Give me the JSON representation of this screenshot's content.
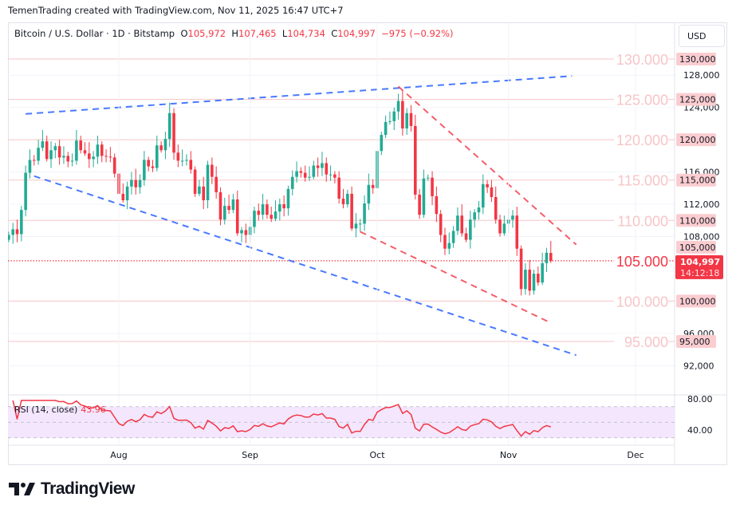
{
  "credit": "TemenTrading created with TradingView.com, Nov 11, 2025 16:47 UTC+7",
  "legend": {
    "symbol": "Bitcoin / U.S. Dollar · 1D · Bitstamp",
    "o_label": "O",
    "o": "105,972",
    "h_label": "H",
    "h": "107,465",
    "l_label": "L",
    "l": "104,734",
    "c_label": "C",
    "c": "104,997",
    "change": "−975 (−0.92%)"
  },
  "currency_button": "USD",
  "last_price": {
    "value": "104,997",
    "countdown": "14:12:18"
  },
  "colors": {
    "up": "#22ab94",
    "down": "#f23645",
    "level": "#f7c5c7",
    "trend_blue": "#2962ff",
    "trend_red": "#f23645",
    "rsi": "#f23645",
    "rsi_band": "#f3e6fd"
  },
  "chart_data": [
    {
      "type": "candlestick",
      "title": "Bitcoin / U.S. Dollar · 1D · Bitstamp",
      "start_date": "2025-07-06",
      "closes_thousands": [
        108.2,
        108.9,
        108.3,
        111.3,
        115.9,
        117.5,
        117.4,
        119.0,
        119.8,
        117.6,
        118.7,
        119.2,
        117.8,
        118.0,
        117.3,
        117.4,
        119.9,
        118.7,
        118.3,
        117.6,
        117.9,
        119.4,
        118.0,
        117.9,
        117.8,
        115.8,
        113.3,
        112.5,
        114.2,
        115.0,
        114.1,
        115.0,
        117.5,
        116.7,
        116.5,
        119.3,
        118.7,
        120.1,
        123.3,
        118.4,
        117.4,
        117.4,
        117.5,
        116.3,
        113.3,
        114.2,
        112.5,
        116.9,
        115.4,
        113.5,
        110.1,
        111.8,
        111.3,
        112.6,
        108.4,
        108.8,
        108.2,
        109.2,
        111.2,
        110.7,
        112.0,
        110.7,
        110.2,
        111.1,
        112.0,
        111.5,
        113.9,
        115.4,
        116.1,
        115.9,
        115.3,
        115.4,
        116.8,
        116.5,
        117.1,
        115.7,
        115.7,
        115.3,
        112.7,
        112.0,
        113.3,
        109.0,
        109.6,
        109.6,
        112.1,
        114.4,
        114.0,
        118.6,
        120.6,
        122.2,
        122.3,
        123.5,
        124.8,
        121.4,
        123.3,
        121.7,
        113.2,
        110.7,
        115.2,
        115.3,
        113.0,
        110.8,
        108.2,
        106.5,
        107.2,
        108.7,
        110.6,
        108.4,
        107.6,
        110.1,
        111.0,
        111.6,
        114.5,
        114.1,
        112.9,
        110.1,
        108.4,
        109.6,
        110.1,
        110.6,
        106.5,
        101.5,
        103.9,
        101.3,
        103.4,
        102.3,
        104.7,
        106.0,
        105.0
      ],
      "last_bar": {
        "open": 105972,
        "high": 107465,
        "low": 104734,
        "close": 104997
      },
      "y_range": [
        91000,
        134000
      ],
      "y_ticks": [
        "128,000",
        "124,000",
        "116,000",
        "112,000",
        "108,000",
        "96,000",
        "92,000"
      ],
      "y_tick_values": [
        128000,
        124000,
        116000,
        112000,
        108000,
        96000,
        92000
      ],
      "x_ticks": [
        {
          "label": "Aug",
          "date": "2025-08-01"
        },
        {
          "label": "Sep",
          "date": "2025-09-01"
        },
        {
          "label": "Oct",
          "date": "2025-10-01"
        },
        {
          "label": "Nov",
          "date": "2025-11-01"
        },
        {
          "label": "Dec",
          "date": "2025-12-01"
        }
      ],
      "levels": [
        {
          "value": 130000,
          "big_label": "130.000",
          "axis_label": "130,000"
        },
        {
          "value": 125000,
          "big_label": "125.000",
          "axis_label": "125,000"
        },
        {
          "value": 120000,
          "big_label": "120.000",
          "axis_label": "120,000"
        },
        {
          "value": 115000,
          "big_label": "115.000",
          "axis_label": "115,000"
        },
        {
          "value": 110000,
          "big_label": "110.000",
          "axis_label": "110,000"
        },
        {
          "value": 105000,
          "big_label": "105.000",
          "axis_label": "105,000",
          "current": true
        },
        {
          "value": 100000,
          "big_label": "100.000",
          "axis_label": "100,000"
        },
        {
          "value": 95000,
          "big_label": "95.000",
          "axis_label": "95,000"
        }
      ],
      "trendlines": [
        {
          "color": "blue",
          "from": [
            "2025-07-10",
            123200
          ],
          "to": [
            "2025-11-16",
            127900
          ]
        },
        {
          "color": "blue",
          "from": [
            "2025-07-12",
            115500
          ],
          "to": [
            "2025-11-17",
            93300
          ]
        },
        {
          "color": "red",
          "from": [
            "2025-10-06",
            126600
          ],
          "to": [
            "2025-11-17",
            107000
          ]
        },
        {
          "color": "red",
          "from": [
            "2025-09-27",
            108600
          ],
          "to": [
            "2025-11-11",
            97300
          ]
        }
      ]
    },
    {
      "type": "line",
      "title": "RSI (14, close)",
      "value_label": "43.96",
      "y_ticks": [
        "80.00",
        "40.00"
      ],
      "y_tick_values": [
        80,
        40
      ],
      "bands": [
        30,
        50,
        70
      ]
    }
  ],
  "footer": {
    "brand": "TradingView"
  }
}
